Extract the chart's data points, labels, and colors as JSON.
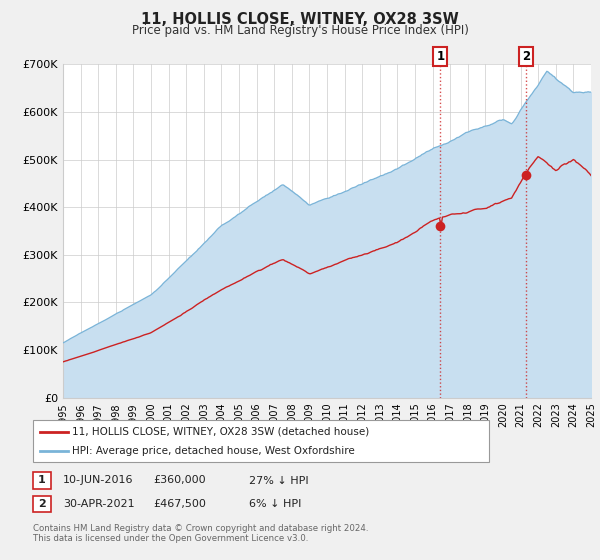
{
  "title": "11, HOLLIS CLOSE, WITNEY, OX28 3SW",
  "subtitle": "Price paid vs. HM Land Registry's House Price Index (HPI)",
  "hpi_color": "#7ab4d8",
  "hpi_fill_color": "#c8dff0",
  "price_color": "#cc2222",
  "dotted_color": "#cc2222",
  "background_color": "#f0f0f0",
  "plot_bg_color": "#ffffff",
  "grid_color": "#cccccc",
  "ylim": [
    0,
    700000
  ],
  "yticks": [
    0,
    100000,
    200000,
    300000,
    400000,
    500000,
    600000,
    700000
  ],
  "ytick_labels": [
    "£0",
    "£100K",
    "£200K",
    "£300K",
    "£400K",
    "£500K",
    "£600K",
    "£700K"
  ],
  "legend_label_price": "11, HOLLIS CLOSE, WITNEY, OX28 3SW (detached house)",
  "legend_label_hpi": "HPI: Average price, detached house, West Oxfordshire",
  "sale1_date_x": 2016.44,
  "sale1_price": 360000,
  "sale2_date_x": 2021.33,
  "sale2_price": 467500,
  "xmin": 1995,
  "xmax": 2025,
  "ann1_date": "10-JUN-2016",
  "ann1_price": "£360,000",
  "ann1_pct": "27% ↓ HPI",
  "ann2_date": "30-APR-2021",
  "ann2_price": "£467,500",
  "ann2_pct": "6% ↓ HPI",
  "footnote": "Contains HM Land Registry data © Crown copyright and database right 2024.\nThis data is licensed under the Open Government Licence v3.0."
}
